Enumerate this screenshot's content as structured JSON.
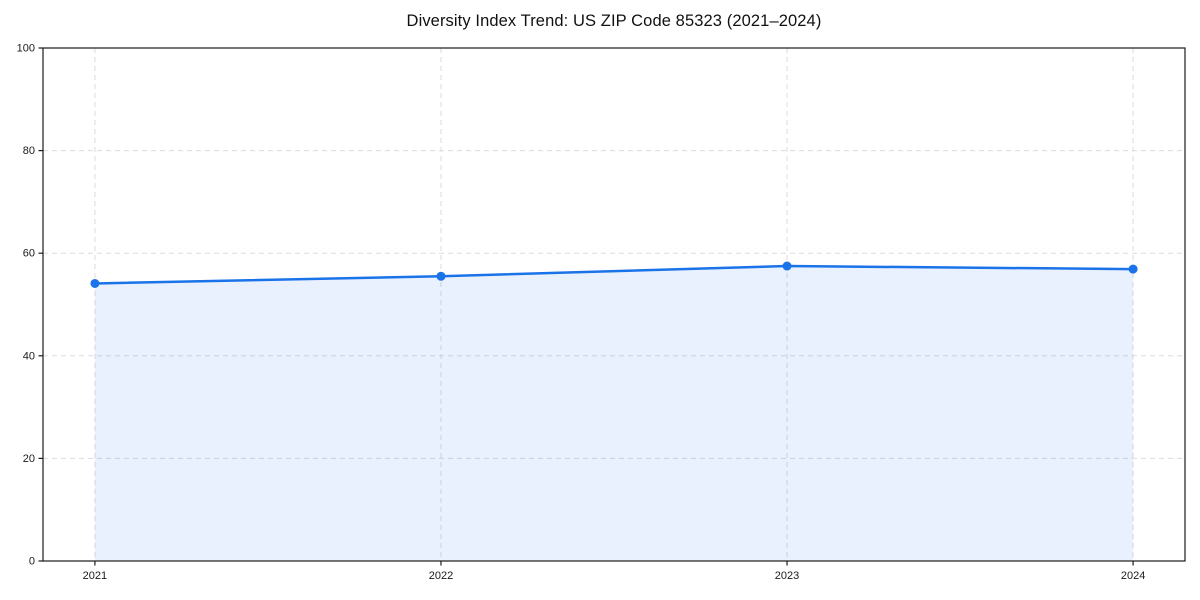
{
  "chart_data": {
    "type": "area",
    "title": "Diversity Index Trend: US ZIP Code 85323 (2021–2024)",
    "x": [
      2021,
      2022,
      2023,
      2024
    ],
    "series": [
      {
        "name": "Diversity Index",
        "values": [
          54.1,
          55.5,
          57.5,
          56.9
        ]
      }
    ],
    "xlabel": "",
    "ylabel": "",
    "ylim": [
      0,
      100
    ],
    "yticks": [
      0,
      20,
      40,
      60,
      80,
      100
    ],
    "xticks": [
      2021,
      2022,
      2023,
      2024
    ],
    "x_margin_fraction": 0.05,
    "grid": "dashed",
    "legend_position": "none",
    "line_color": "#1a73e8",
    "marker_color": "#1a73e8",
    "fill_color": "rgba(26,115,232,0.10)",
    "grid_color": "#dcdcdc",
    "spine_color": "#1b1b1b",
    "tick_label_color": "#1a1a1a"
  }
}
